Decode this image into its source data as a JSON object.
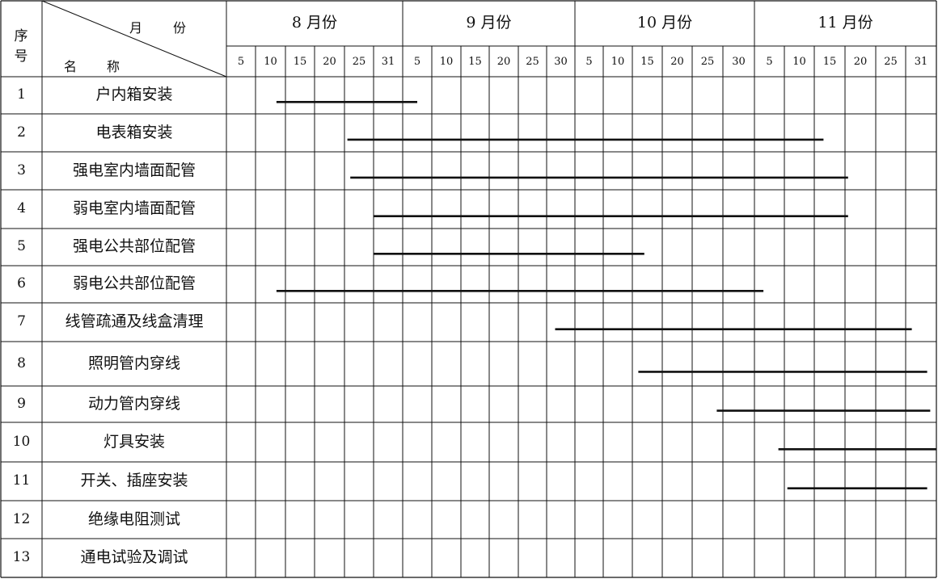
{
  "header": {
    "seq_label": [
      "序",
      "号"
    ],
    "corner_top": [
      "月",
      "份"
    ],
    "corner_bottom": [
      "名",
      "称"
    ],
    "months": [
      "8 月份",
      "9 月份",
      "10 月份",
      "11 月份"
    ],
    "days": [
      [
        "5",
        "10",
        "15",
        "20",
        "25",
        "31"
      ],
      [
        "5",
        "10",
        "15",
        "20",
        "25",
        "30"
      ],
      [
        "5",
        "10",
        "15",
        "20",
        "25",
        "30"
      ],
      [
        "5",
        "10",
        "15",
        "20",
        "25",
        "31"
      ]
    ]
  },
  "rows": [
    {
      "num": "1",
      "name": "户内箱安装",
      "bar": [
        1.7,
        6.5
      ]
    },
    {
      "num": "2",
      "name": "电表箱安装",
      "bar": [
        4.1,
        20.3
      ]
    },
    {
      "num": "3",
      "name": "强电室内墙面配管",
      "bar": [
        4.2,
        21.1
      ]
    },
    {
      "num": "4",
      "name": "弱电室内墙面配管",
      "bar": [
        5.0,
        21.1
      ]
    },
    {
      "num": "5",
      "name": "强电公共部位配管",
      "bar": [
        5.0,
        14.4
      ]
    },
    {
      "num": "6",
      "name": "弱电公共部位配管",
      "bar": [
        1.7,
        18.3
      ]
    },
    {
      "num": "7",
      "name": "线管疏通及线盒清理",
      "bar": [
        11.3,
        23.2
      ]
    },
    {
      "num": "8",
      "name": "照明管内穿线",
      "bar": [
        14.2,
        23.7
      ]
    },
    {
      "num": "9",
      "name": "动力管内穿线",
      "bar": [
        16.8,
        23.8
      ]
    },
    {
      "num": "10",
      "name": "灯具安装",
      "bar": [
        18.8,
        24.0
      ]
    },
    {
      "num": "11",
      "name": "开关、插座安装",
      "bar": [
        19.1,
        23.7
      ]
    },
    {
      "num": "12",
      "name": "绝缘电阻测试"
    },
    {
      "num": "13",
      "name": "通电试验及调试"
    }
  ]
}
